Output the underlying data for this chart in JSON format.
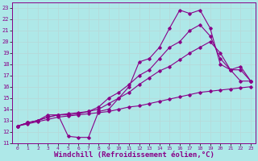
{
  "background_color": "#aee8e8",
  "grid_color": "#c8e8e8",
  "line_color": "#880088",
  "xlabel": "Windchill (Refroidissement éolien,°C)",
  "xlabel_fontsize": 6.5,
  "xlim": [
    -0.5,
    23.5
  ],
  "ylim": [
    11,
    23.5
  ],
  "yticks": [
    11,
    12,
    13,
    14,
    15,
    16,
    17,
    18,
    19,
    20,
    21,
    22,
    23
  ],
  "xticks": [
    0,
    1,
    2,
    3,
    4,
    5,
    6,
    7,
    8,
    9,
    10,
    11,
    12,
    13,
    14,
    15,
    16,
    17,
    18,
    19,
    20,
    21,
    22,
    23
  ],
  "line1_x": [
    0,
    1,
    2,
    3,
    4,
    5,
    6,
    7,
    8,
    9,
    10,
    11,
    12,
    13,
    14,
    15,
    16,
    17,
    18,
    19,
    20,
    21,
    22,
    23
  ],
  "line1_y": [
    12.5,
    12.7,
    12.9,
    13.1,
    13.3,
    13.4,
    13.5,
    13.6,
    13.7,
    13.8,
    14.0,
    14.2,
    14.3,
    14.5,
    14.7,
    14.9,
    15.1,
    15.3,
    15.5,
    15.6,
    15.7,
    15.8,
    15.9,
    16.0
  ],
  "line2_x": [
    0,
    1,
    2,
    3,
    4,
    5,
    6,
    7,
    8,
    9,
    10,
    11,
    12,
    13,
    14,
    15,
    16,
    17,
    18,
    19,
    20,
    21,
    22,
    23
  ],
  "line2_y": [
    12.5,
    12.8,
    13.0,
    13.5,
    13.5,
    11.6,
    11.5,
    11.5,
    13.8,
    14.0,
    15.0,
    16.0,
    18.2,
    18.5,
    19.5,
    21.2,
    22.8,
    22.5,
    22.8,
    21.2,
    18.0,
    17.5,
    17.8,
    16.5
  ],
  "line3_x": [
    0,
    1,
    2,
    3,
    4,
    5,
    6,
    7,
    8,
    9,
    10,
    11,
    12,
    13,
    14,
    15,
    16,
    17,
    18,
    19,
    20,
    21,
    22,
    23
  ],
  "line3_y": [
    12.5,
    12.8,
    13.0,
    13.3,
    13.5,
    13.6,
    13.7,
    13.8,
    14.0,
    14.5,
    15.0,
    15.5,
    16.2,
    16.8,
    17.4,
    17.8,
    18.4,
    19.0,
    19.5,
    20.0,
    19.0,
    17.5,
    16.5,
    16.5
  ],
  "line4_x": [
    0,
    1,
    2,
    3,
    4,
    5,
    6,
    7,
    8,
    9,
    10,
    11,
    12,
    13,
    14,
    15,
    16,
    17,
    18,
    19,
    20,
    21,
    22,
    23
  ],
  "line4_y": [
    12.5,
    12.8,
    13.0,
    13.3,
    13.5,
    13.5,
    13.6,
    13.8,
    14.2,
    15.0,
    15.5,
    16.2,
    17.0,
    17.5,
    18.5,
    19.5,
    20.0,
    21.0,
    21.5,
    20.5,
    18.5,
    17.5,
    17.5,
    16.5
  ]
}
